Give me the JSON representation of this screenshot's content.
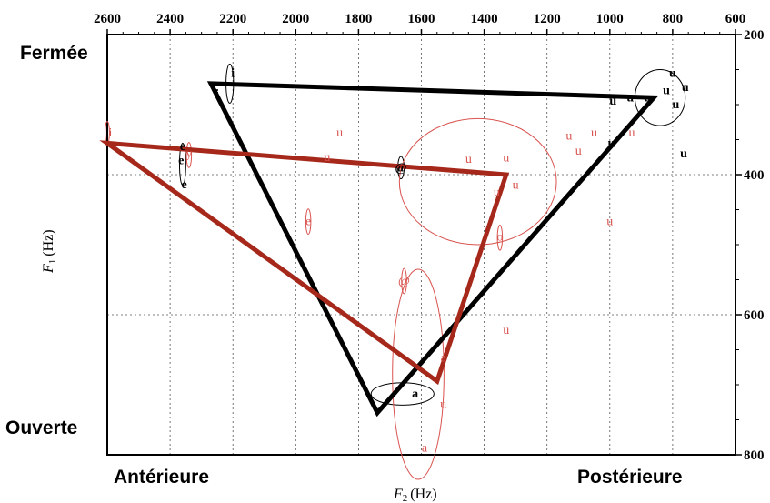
{
  "corner_labels": {
    "top_left": "Fermée",
    "bottom_left": "Ouverte",
    "bottom_left_x": "Antérieure",
    "bottom_right_x": "Postérieure"
  },
  "chart_data": {
    "type": "scatter",
    "xlabel": "F",
    "xlabel_sub": "2",
    "xlabel_unit": "(Hz)",
    "ylabel": "F",
    "ylabel_sub": "1",
    "ylabel_unit": "(Hz)",
    "x_axis": {
      "range": [
        2600,
        600
      ],
      "ticks": [
        2600,
        2400,
        2200,
        2000,
        1800,
        1600,
        1400,
        1200,
        1000,
        800,
        600
      ],
      "position": "top",
      "reversed": true
    },
    "y_axis": {
      "range": [
        200,
        800
      ],
      "ticks": [
        200,
        400,
        600,
        800
      ],
      "position": "right",
      "reversed": true
    },
    "grid": true,
    "colors": {
      "black": "#000000",
      "red": "#a6281b",
      "red_light": "#d9534f"
    },
    "series": [
      {
        "color": "black",
        "polygon": [
          [
            2270,
            270
          ],
          [
            860,
            290
          ],
          [
            1740,
            740
          ]
        ],
        "points": [
          {
            "label": "i",
            "x": 2200,
            "y": 255
          },
          {
            "label": "i",
            "x": 2250,
            "y": 285
          },
          {
            "label": "e",
            "x": 2360,
            "y": 360
          },
          {
            "label": "e",
            "x": 2365,
            "y": 380
          },
          {
            "label": "e",
            "x": 2355,
            "y": 414
          },
          {
            "label": "@",
            "x": 1665,
            "y": 390
          },
          {
            "label": "a",
            "x": 1620,
            "y": 713
          },
          {
            "label": "u",
            "x": 800,
            "y": 255
          },
          {
            "label": "u",
            "x": 820,
            "y": 280
          },
          {
            "label": "u",
            "x": 760,
            "y": 275
          },
          {
            "label": "u",
            "x": 790,
            "y": 300
          },
          {
            "label": "u",
            "x": 880,
            "y": 290
          },
          {
            "label": "u",
            "x": 935,
            "y": 290
          },
          {
            "label": "u",
            "x": 990,
            "y": 295
          },
          {
            "label": "u",
            "x": 995,
            "y": 355
          },
          {
            "label": "u",
            "x": 765,
            "y": 370
          }
        ],
        "ellipses": [
          {
            "label": "i",
            "cx": 2210,
            "cy": 270,
            "rx": 12,
            "ry": 28
          },
          {
            "label": "e",
            "cx": 2360,
            "cy": 385,
            "rx": 10,
            "ry": 30
          },
          {
            "label": "@",
            "cx": 1665,
            "cy": 390,
            "rx": 10,
            "ry": 16
          },
          {
            "label": "a",
            "cx": 1660,
            "cy": 713,
            "rx": 100,
            "ry": 16
          },
          {
            "label": "u",
            "cx": 840,
            "cy": 290,
            "rx": 80,
            "ry": 40
          }
        ]
      },
      {
        "color": "red",
        "polygon": [
          [
            2600,
            355
          ],
          [
            1330,
            400
          ],
          [
            1550,
            695
          ]
        ],
        "points": [
          {
            "label": "i",
            "x": 2590,
            "y": 340
          },
          {
            "label": "y",
            "x": 2340,
            "y": 370
          },
          {
            "label": "e",
            "x": 1960,
            "y": 467
          },
          {
            "label": "@",
            "x": 1655,
            "y": 552
          },
          {
            "label": "a",
            "x": 1530,
            "y": 662
          },
          {
            "label": "a",
            "x": 1590,
            "y": 790
          },
          {
            "label": "o",
            "x": 1350,
            "y": 489
          },
          {
            "label": "u",
            "x": 1860,
            "y": 340
          },
          {
            "label": "u",
            "x": 1900,
            "y": 375
          },
          {
            "label": "u",
            "x": 1450,
            "y": 378
          },
          {
            "label": "u",
            "x": 1330,
            "y": 376
          },
          {
            "label": "u",
            "x": 1360,
            "y": 425
          },
          {
            "label": "u",
            "x": 1300,
            "y": 415
          },
          {
            "label": "u",
            "x": 1130,
            "y": 345
          },
          {
            "label": "u",
            "x": 1050,
            "y": 340
          },
          {
            "label": "u",
            "x": 930,
            "y": 340
          },
          {
            "label": "u",
            "x": 1100,
            "y": 366
          },
          {
            "label": "u",
            "x": 1000,
            "y": 467
          },
          {
            "label": "u",
            "x": 1330,
            "y": 622
          },
          {
            "label": "u",
            "x": 1530,
            "y": 728
          }
        ],
        "ellipses": [
          {
            "label": "i",
            "cx": 2600,
            "cy": 340,
            "rx": 7,
            "ry": 16
          },
          {
            "label": "y",
            "cx": 2340,
            "cy": 372,
            "rx": 8,
            "ry": 18
          },
          {
            "label": "e",
            "cx": 1960,
            "cy": 467,
            "rx": 8,
            "ry": 18
          },
          {
            "label": "@",
            "cx": 1655,
            "cy": 552,
            "rx": 8,
            "ry": 18
          },
          {
            "label": "o",
            "cx": 1350,
            "cy": 490,
            "rx": 8,
            "ry": 18
          },
          {
            "label": "u",
            "cx": 1420,
            "cy": 410,
            "rx": 250,
            "ry": 90
          },
          {
            "label": "a",
            "cx": 1610,
            "cy": 685,
            "rx": 82,
            "ry": 150
          }
        ]
      }
    ]
  }
}
